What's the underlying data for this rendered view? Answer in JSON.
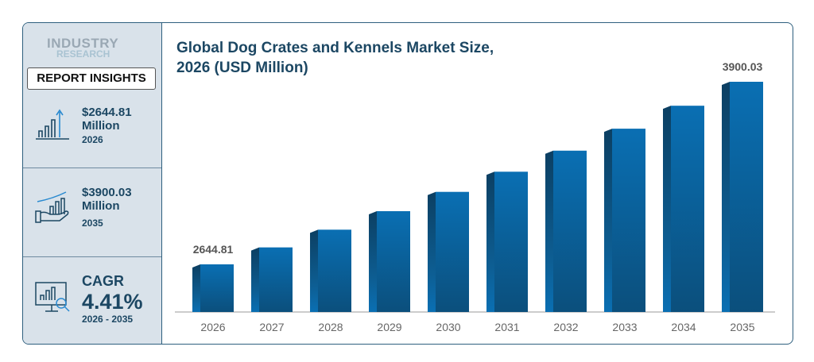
{
  "brand": {
    "line1": "INDUSTRY",
    "line2": "RESEARCH"
  },
  "sidebar": {
    "heading": "REPORT INSIGHTS",
    "items": [
      {
        "icon": "bar-chart-arrow-icon",
        "value": "$2644.81",
        "unit": "Million",
        "sub": "2026"
      },
      {
        "icon": "hand-chart-icon",
        "value": "$3900.03",
        "unit": "Million",
        "sub": "2035"
      },
      {
        "icon": "monitor-analytics-icon",
        "value": "CAGR",
        "unit": "4.41%",
        "sub": "2026 - 2035"
      }
    ]
  },
  "chart_data": {
    "type": "bar",
    "title": "Global Dog Crates and Kennels Market Size, 2026 (USD Million)",
    "title_line1": "Global Dog Crates and Kennels Market Size,",
    "title_line2": "2026 (USD Million)",
    "categories": [
      "2026",
      "2027",
      "2028",
      "2029",
      "2030",
      "2031",
      "2032",
      "2033",
      "2034",
      "2035"
    ],
    "values": [
      2644.81,
      2761.4,
      2883.2,
      3010.4,
      3143.1,
      3281.7,
      3426.4,
      3577.5,
      3735.3,
      3900.03
    ],
    "data_labels": {
      "0": "2644.81",
      "9": "3900.03"
    },
    "colors": {
      "front": "#0a68a8",
      "side": "#0c4a72",
      "label": "#555555"
    },
    "grid": false
  }
}
